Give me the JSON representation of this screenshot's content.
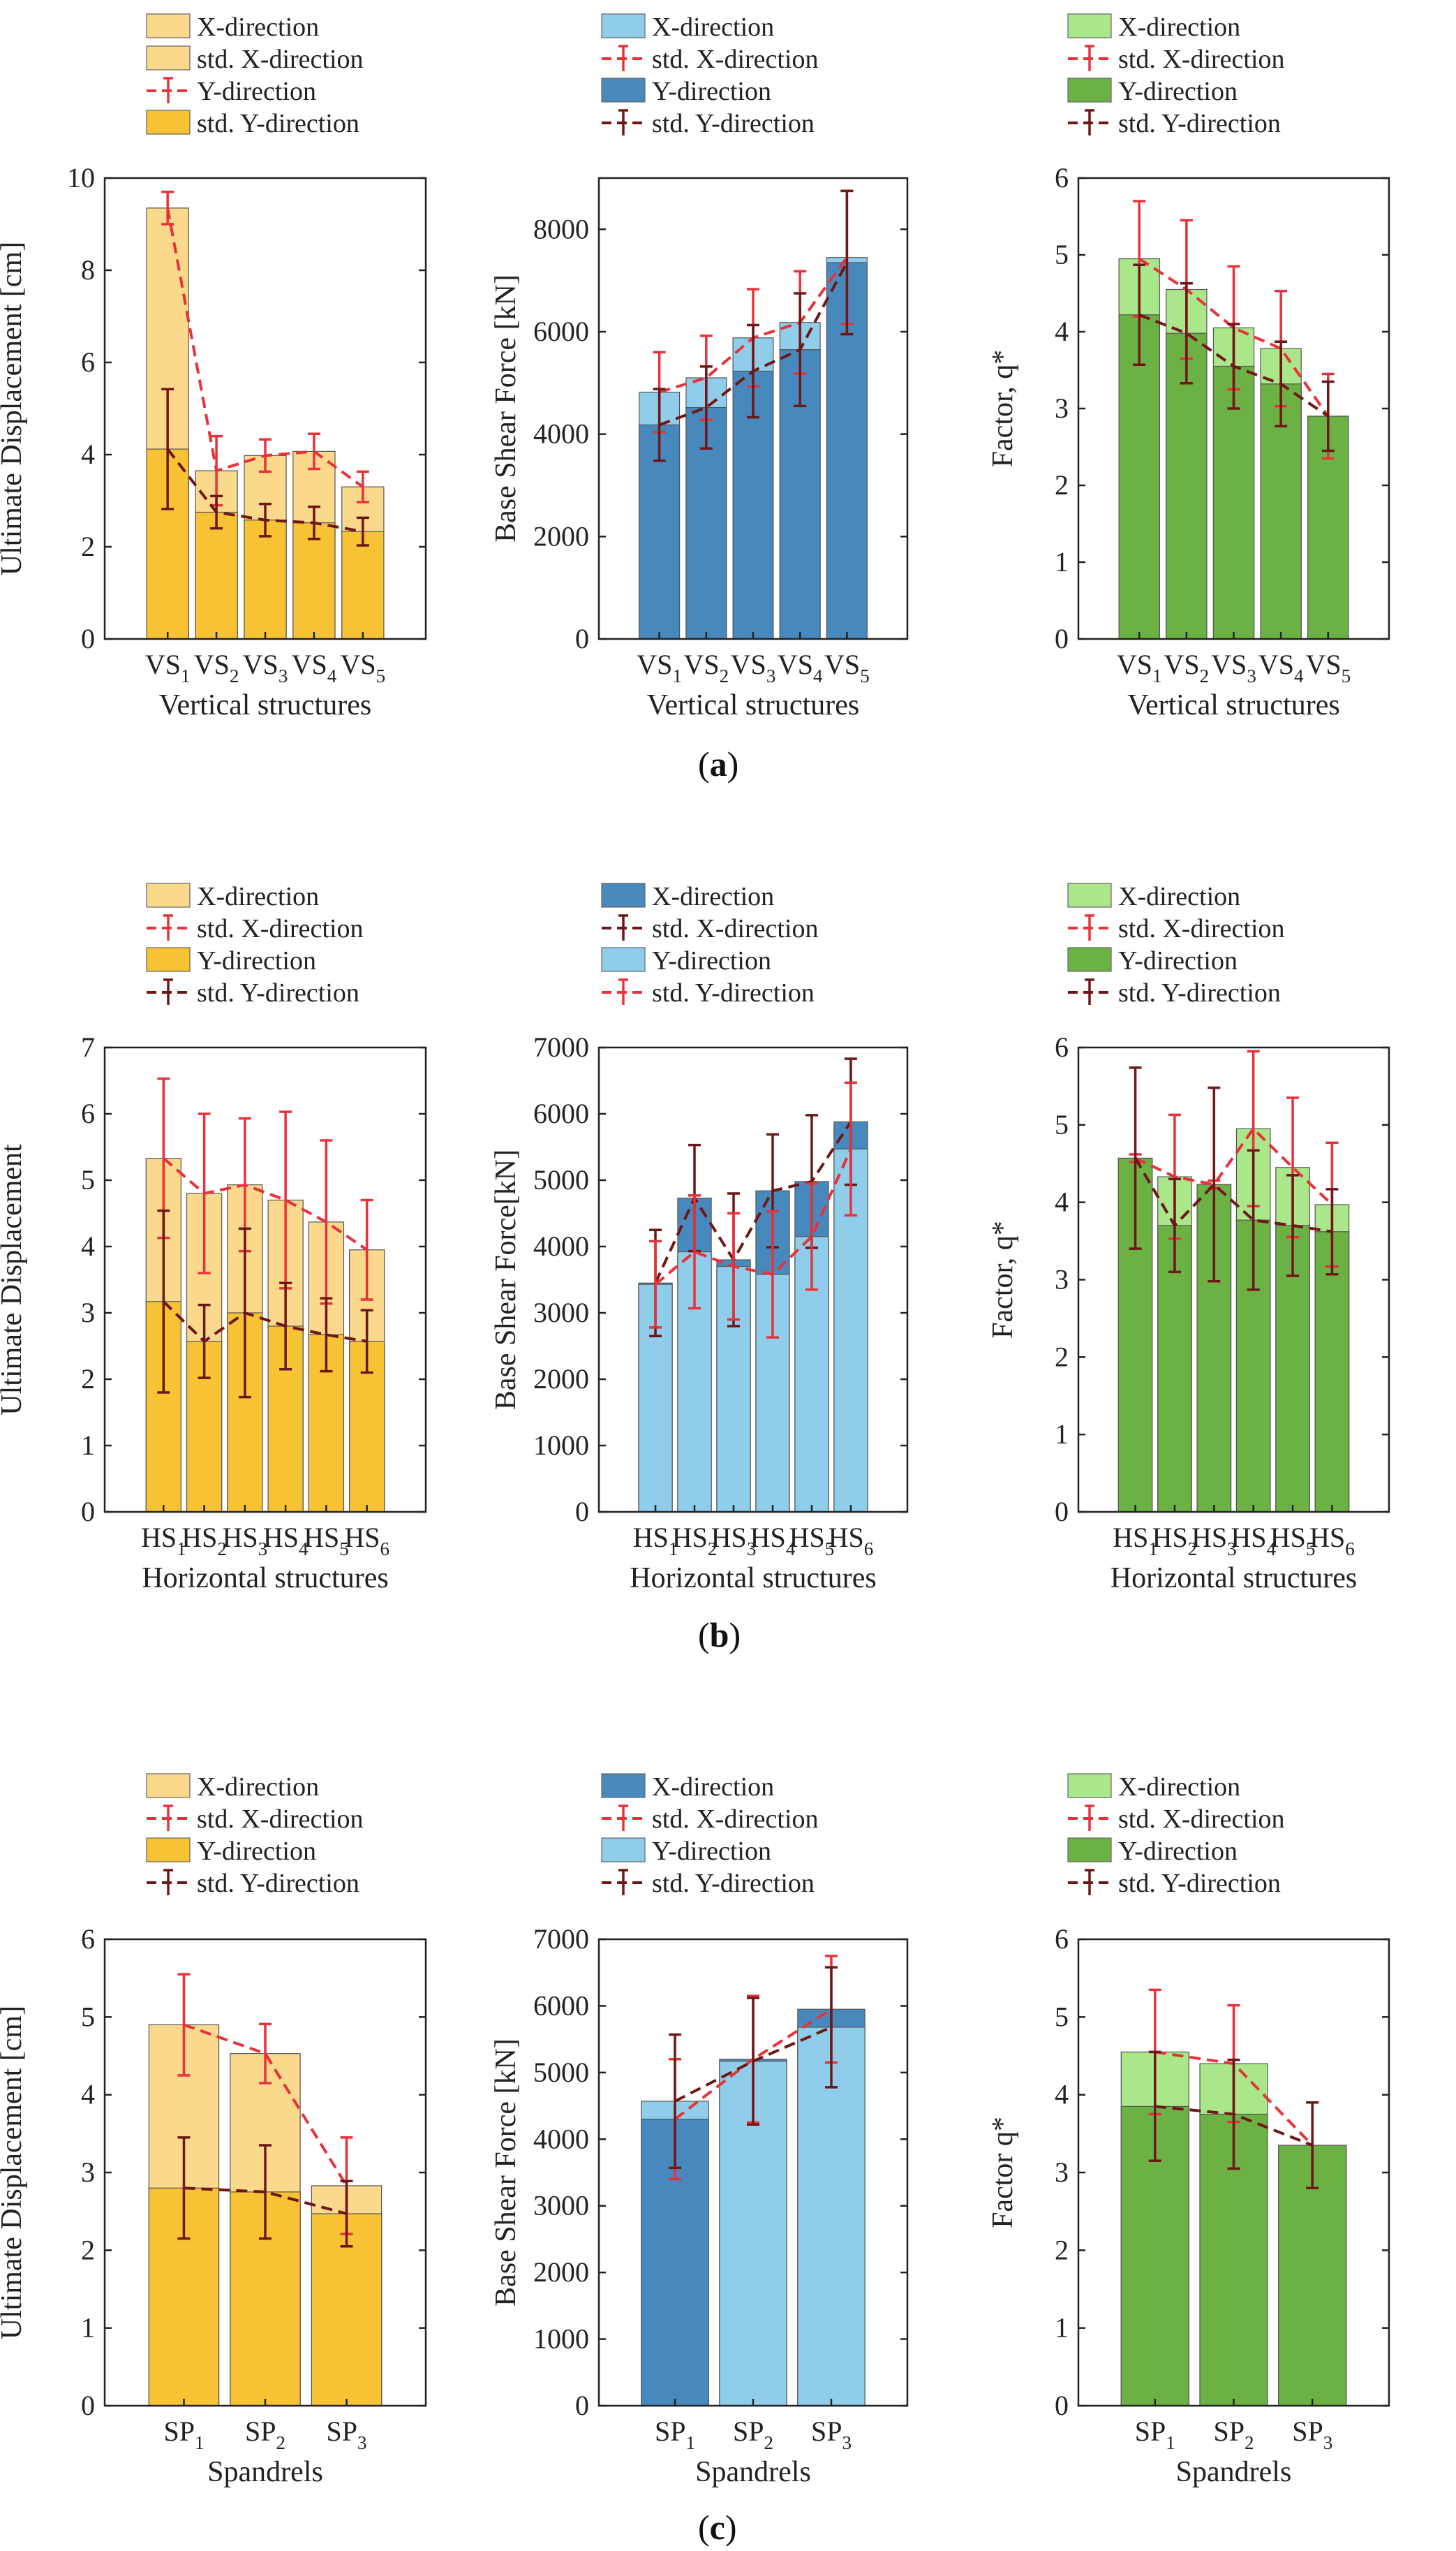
{
  "panels": [
    "a",
    "b",
    "c"
  ],
  "colors": {
    "yellow_light": "#fbd98c",
    "yellow_dark": "#f8c235",
    "blue_light": "#8fcdeb",
    "blue_dark": "#4789bd",
    "green_light": "#a9e78a",
    "green_dark": "#6cb143",
    "red_dash": "#e8323a",
    "darkred_dash": "#6e1717"
  },
  "chart_data": [
    {
      "id": "a1",
      "row": 0,
      "col": 0,
      "type": "bar",
      "categories": [
        {
          "base": "VS",
          "sub": "1"
        },
        {
          "base": "VS",
          "sub": "2"
        },
        {
          "base": "VS",
          "sub": "3"
        },
        {
          "base": "VS",
          "sub": "4"
        },
        {
          "base": "VS",
          "sub": "5"
        }
      ],
      "xlabel": "Vertical structures",
      "ylabel": "Ultimate Displacement [cm]",
      "ylim": [
        0,
        10
      ],
      "yticks": [
        0,
        2,
        4,
        6,
        8,
        10
      ],
      "front": "Y",
      "legend": [
        {
          "label": "X-direction",
          "type": "bar",
          "color": "yellow_light"
        },
        {
          "label": "std. X-direction",
          "type": "bar",
          "color": "yellow_light"
        },
        {
          "label": "Y-direction",
          "type": "err",
          "color": "red_dash"
        },
        {
          "label": "std. Y-direction",
          "type": "bar",
          "color": "yellow_dark"
        }
      ],
      "series": [
        {
          "name": "X-direction",
          "values": [
            9.35,
            3.65,
            3.98,
            4.07,
            3.3
          ],
          "std": [
            0.35,
            0.75,
            0.35,
            0.38,
            0.33
          ],
          "bar_color": "yellow_light",
          "line_color": "red_dash"
        },
        {
          "name": "Y-direction",
          "values": [
            4.12,
            2.75,
            2.58,
            2.52,
            2.33
          ],
          "std": [
            1.3,
            0.35,
            0.35,
            0.35,
            0.3
          ],
          "bar_color": "yellow_dark",
          "line_color": "darkred_dash"
        }
      ]
    },
    {
      "id": "a2",
      "row": 0,
      "col": 1,
      "type": "bar",
      "categories": [
        {
          "base": "VS",
          "sub": "1"
        },
        {
          "base": "VS",
          "sub": "2"
        },
        {
          "base": "VS",
          "sub": "3"
        },
        {
          "base": "VS",
          "sub": "4"
        },
        {
          "base": "VS",
          "sub": "5"
        }
      ],
      "xlabel": "Vertical structures",
      "ylabel": "Base Shear Force [kN]",
      "ylim": [
        0,
        9000
      ],
      "yticks": [
        0,
        2000,
        4000,
        6000,
        8000
      ],
      "front": "Y",
      "legend": [
        {
          "label": "X-direction",
          "type": "bar",
          "color": "blue_light"
        },
        {
          "label": "std. X-direction",
          "type": "err",
          "color": "red_dash"
        },
        {
          "label": "Y-direction",
          "type": "bar",
          "color": "blue_dark"
        },
        {
          "label": "std. Y-direction",
          "type": "err",
          "color": "darkred_dash"
        }
      ],
      "series": [
        {
          "name": "X-direction",
          "values": [
            4820,
            5100,
            5880,
            6180,
            7450
          ],
          "std": [
            780,
            820,
            950,
            1000,
            1300
          ],
          "bar_color": "blue_light",
          "line_color": "red_dash"
        },
        {
          "name": "Y-direction",
          "values": [
            4180,
            4520,
            5230,
            5650,
            7350
          ],
          "std": [
            700,
            800,
            900,
            1100,
            1400
          ],
          "bar_color": "blue_dark",
          "line_color": "darkred_dash"
        }
      ]
    },
    {
      "id": "a3",
      "row": 0,
      "col": 2,
      "type": "bar",
      "categories": [
        {
          "base": "VS",
          "sub": "1"
        },
        {
          "base": "VS",
          "sub": "2"
        },
        {
          "base": "VS",
          "sub": "3"
        },
        {
          "base": "VS",
          "sub": "4"
        },
        {
          "base": "VS",
          "sub": "5"
        }
      ],
      "xlabel": "Vertical structures",
      "ylabel": "Factor, q*",
      "ylim": [
        0,
        6
      ],
      "yticks": [
        0,
        1,
        2,
        3,
        4,
        5,
        6
      ],
      "front": "Y",
      "legend": [
        {
          "label": "X-direction",
          "type": "bar",
          "color": "green_light"
        },
        {
          "label": "std. X-direction",
          "type": "err",
          "color": "red_dash"
        },
        {
          "label": "Y-direction",
          "type": "bar",
          "color": "green_dark"
        },
        {
          "label": "std. Y-direction",
          "type": "err",
          "color": "darkred_dash"
        }
      ],
      "series": [
        {
          "name": "X-direction",
          "values": [
            4.95,
            4.55,
            4.05,
            3.78,
            2.9
          ],
          "std": [
            0.75,
            0.9,
            0.8,
            0.75,
            0.55
          ],
          "bar_color": "green_light",
          "line_color": "red_dash"
        },
        {
          "name": "Y-direction",
          "values": [
            4.22,
            3.98,
            3.55,
            3.32,
            2.9
          ],
          "std": [
            0.65,
            0.65,
            0.55,
            0.55,
            0.45
          ],
          "bar_color": "green_dark",
          "line_color": "darkred_dash"
        }
      ]
    },
    {
      "id": "b1",
      "row": 1,
      "col": 0,
      "type": "bar",
      "categories": [
        {
          "base": "HS",
          "sub": "1"
        },
        {
          "base": "HS",
          "sub": "2"
        },
        {
          "base": "HS",
          "sub": "3"
        },
        {
          "base": "HS",
          "sub": "4"
        },
        {
          "base": "HS",
          "sub": "5"
        },
        {
          "base": "HS",
          "sub": "6"
        }
      ],
      "xlabel": "Horizontal structures",
      "ylabel": "Ultimate Displacement",
      "ylim": [
        0,
        7
      ],
      "yticks": [
        0,
        1,
        2,
        3,
        4,
        5,
        6,
        7
      ],
      "front": "Y",
      "legend": [
        {
          "label": "X-direction",
          "type": "bar",
          "color": "yellow_light"
        },
        {
          "label": "std. X-direction",
          "type": "err",
          "color": "red_dash"
        },
        {
          "label": "Y-direction",
          "type": "bar",
          "color": "yellow_dark"
        },
        {
          "label": "std. Y-direction",
          "type": "err",
          "color": "darkred_dash"
        }
      ],
      "series": [
        {
          "name": "X-direction",
          "values": [
            5.33,
            4.8,
            4.93,
            4.7,
            4.37,
            3.95
          ],
          "std": [
            1.2,
            1.2,
            1.0,
            1.33,
            1.23,
            0.75
          ],
          "bar_color": "yellow_light",
          "line_color": "red_dash"
        },
        {
          "name": "Y-direction",
          "values": [
            3.17,
            2.57,
            3.0,
            2.8,
            2.67,
            2.57
          ],
          "std": [
            1.37,
            0.55,
            1.27,
            0.65,
            0.55,
            0.47
          ],
          "bar_color": "yellow_dark",
          "line_color": "darkred_dash"
        }
      ]
    },
    {
      "id": "b2",
      "row": 1,
      "col": 1,
      "type": "bar",
      "categories": [
        {
          "base": "HS",
          "sub": "1"
        },
        {
          "base": "HS",
          "sub": "2"
        },
        {
          "base": "HS",
          "sub": "3"
        },
        {
          "base": "HS",
          "sub": "4"
        },
        {
          "base": "HS",
          "sub": "5"
        },
        {
          "base": "HS",
          "sub": "6"
        }
      ],
      "xlabel": "Horizontal structures",
      "ylabel": "Base Shear Force[kN]",
      "ylim": [
        0,
        7000
      ],
      "yticks": [
        0,
        1000,
        2000,
        3000,
        4000,
        5000,
        6000,
        7000
      ],
      "front": "Y",
      "legend": [
        {
          "label": "X-direction",
          "type": "bar",
          "color": "blue_dark"
        },
        {
          "label": "std. X-direction",
          "type": "err",
          "color": "darkred_dash"
        },
        {
          "label": "Y-direction",
          "type": "bar",
          "color": "blue_light"
        },
        {
          "label": "std. Y-direction",
          "type": "err",
          "color": "red_dash"
        }
      ],
      "series": [
        {
          "name": "X-direction",
          "values": [
            3450,
            4730,
            3800,
            4840,
            4980,
            5880
          ],
          "std": [
            800,
            800,
            1000,
            850,
            1000,
            950
          ],
          "bar_color": "blue_dark",
          "line_color": "darkred_dash"
        },
        {
          "name": "Y-direction",
          "values": [
            3430,
            3920,
            3700,
            3580,
            4150,
            5470
          ],
          "std": [
            650,
            850,
            800,
            950,
            800,
            1000
          ],
          "bar_color": "blue_light",
          "line_color": "red_dash"
        }
      ]
    },
    {
      "id": "b3",
      "row": 1,
      "col": 2,
      "type": "bar",
      "categories": [
        {
          "base": "HS",
          "sub": "1"
        },
        {
          "base": "HS",
          "sub": "2"
        },
        {
          "base": "HS",
          "sub": "3"
        },
        {
          "base": "HS",
          "sub": "4"
        },
        {
          "base": "HS",
          "sub": "5"
        },
        {
          "base": "HS",
          "sub": "6"
        }
      ],
      "xlabel": "Horizontal structures",
      "ylabel": "Factor, q*",
      "ylim": [
        0,
        6
      ],
      "yticks": [
        0,
        1,
        2,
        3,
        4,
        5,
        6
      ],
      "front": "Y",
      "legend": [
        {
          "label": "X-direction",
          "type": "bar",
          "color": "green_light"
        },
        {
          "label": "std. X-direction",
          "type": "err",
          "color": "red_dash"
        },
        {
          "label": "Y-direction",
          "type": "bar",
          "color": "green_dark"
        },
        {
          "label": "std. Y-direction",
          "type": "err",
          "color": "darkred_dash"
        }
      ],
      "series": [
        {
          "name": "X-direction",
          "values": [
            4.57,
            4.33,
            4.23,
            4.95,
            4.45,
            3.97
          ],
          "std": [
            0.05,
            0.8,
            0.05,
            1.0,
            0.9,
            0.8
          ],
          "bar_color": "green_light",
          "line_color": "red_dash"
        },
        {
          "name": "Y-direction",
          "values": [
            4.57,
            3.7,
            4.23,
            3.77,
            3.7,
            3.62
          ],
          "std": [
            1.17,
            0.6,
            1.25,
            0.9,
            0.65,
            0.55
          ],
          "bar_color": "green_dark",
          "line_color": "darkred_dash"
        }
      ]
    },
    {
      "id": "c1",
      "row": 2,
      "col": 0,
      "type": "bar",
      "categories": [
        {
          "base": "SP",
          "sub": "1"
        },
        {
          "base": "SP",
          "sub": "2"
        },
        {
          "base": "SP",
          "sub": "3"
        }
      ],
      "xlabel": "Spandrels",
      "ylabel": "Ultimate Displacement [cm]",
      "ylim": [
        0,
        6
      ],
      "yticks": [
        0,
        1,
        2,
        3,
        4,
        5,
        6
      ],
      "front": "Y",
      "legend": [
        {
          "label": "X-direction",
          "type": "bar",
          "color": "yellow_light"
        },
        {
          "label": "std. X-direction",
          "type": "err",
          "color": "red_dash"
        },
        {
          "label": "Y-direction",
          "type": "bar",
          "color": "yellow_dark"
        },
        {
          "label": "std. Y-direction",
          "type": "err",
          "color": "darkred_dash"
        }
      ],
      "series": [
        {
          "name": "X-direction",
          "values": [
            4.9,
            4.53,
            2.83
          ],
          "std": [
            0.65,
            0.38,
            0.62
          ],
          "bar_color": "yellow_light",
          "line_color": "red_dash"
        },
        {
          "name": "Y-direction",
          "values": [
            2.8,
            2.75,
            2.47
          ],
          "std": [
            0.65,
            0.6,
            0.42
          ],
          "bar_color": "yellow_dark",
          "line_color": "darkred_dash"
        }
      ]
    },
    {
      "id": "c2",
      "row": 2,
      "col": 1,
      "type": "bar",
      "categories": [
        {
          "base": "SP",
          "sub": "1"
        },
        {
          "base": "SP",
          "sub": "2"
        },
        {
          "base": "SP",
          "sub": "3"
        }
      ],
      "xlabel": "Spandrels",
      "ylabel": "Base Shear Force [kN]",
      "ylim": [
        0,
        7000
      ],
      "yticks": [
        0,
        1000,
        2000,
        3000,
        4000,
        5000,
        6000,
        7000
      ],
      "front": "Y",
      "legend": [
        {
          "label": "X-direction",
          "type": "bar",
          "color": "blue_dark"
        },
        {
          "label": "std. X-direction",
          "type": "err",
          "color": "red_dash"
        },
        {
          "label": "Y-direction",
          "type": "bar",
          "color": "blue_light"
        },
        {
          "label": "std. Y-direction",
          "type": "err",
          "color": "darkred_dash"
        }
      ],
      "series": [
        {
          "name": "X-direction",
          "values": [
            4300,
            5200,
            5950
          ],
          "std": [
            900,
            950,
            800
          ],
          "bar_color": "blue_dark",
          "line_color": "red_dash"
        },
        {
          "name": "Y-direction",
          "values": [
            4570,
            5170,
            5680
          ],
          "std": [
            1000,
            950,
            900
          ],
          "bar_color": "blue_light",
          "line_color": "darkred_dash"
        }
      ]
    },
    {
      "id": "c3",
      "row": 2,
      "col": 2,
      "type": "bar",
      "categories": [
        {
          "base": "SP",
          "sub": "1"
        },
        {
          "base": "SP",
          "sub": "2"
        },
        {
          "base": "SP",
          "sub": "3"
        }
      ],
      "xlabel": "Spandrels",
      "ylabel": "Factor q*",
      "ylim": [
        0,
        6
      ],
      "yticks": [
        0,
        1,
        2,
        3,
        4,
        5,
        6
      ],
      "front": "Y",
      "legend": [
        {
          "label": "X-direction",
          "type": "bar",
          "color": "green_light"
        },
        {
          "label": "std. X-direction",
          "type": "err",
          "color": "red_dash"
        },
        {
          "label": "Y-direction",
          "type": "bar",
          "color": "green_dark"
        },
        {
          "label": "std. Y-direction",
          "type": "err",
          "color": "darkred_dash"
        }
      ],
      "series": [
        {
          "name": "X-direction",
          "values": [
            4.55,
            4.4,
            3.35
          ],
          "std": [
            0.8,
            0.75,
            0.55
          ],
          "bar_color": "green_light",
          "line_color": "red_dash"
        },
        {
          "name": "Y-direction",
          "values": [
            3.85,
            3.75,
            3.35
          ],
          "std": [
            0.7,
            0.7,
            0.55
          ],
          "bar_color": "green_dark",
          "line_color": "darkred_dash"
        }
      ]
    }
  ]
}
